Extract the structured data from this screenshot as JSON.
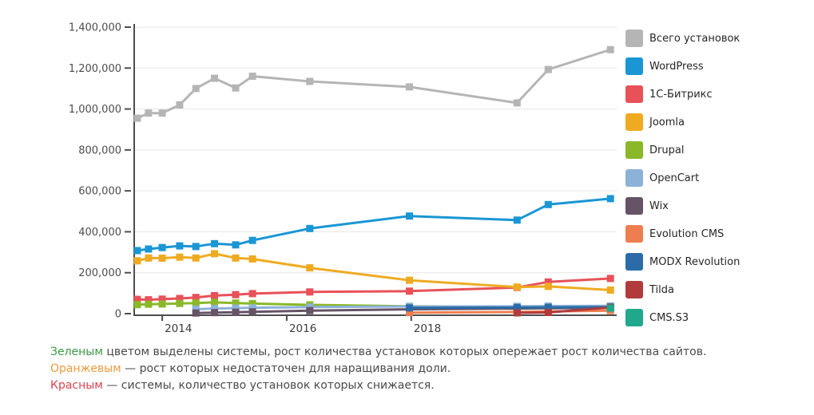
{
  "chart_data": {
    "type": "line",
    "title": "",
    "xlabel": "",
    "ylabel": "",
    "grid": true,
    "legend_position": "right",
    "xlim": [
      2013.55,
      2021.3
    ],
    "ylim": [
      0,
      1400000
    ],
    "x": [
      2013.6,
      2013.78,
      2014.0,
      2014.28,
      2014.54,
      2014.84,
      2015.18,
      2015.45,
      2016.37,
      2017.97,
      2019.7,
      2020.2,
      2021.2
    ],
    "x_ticks": [
      {
        "year": 2014,
        "label": "2014"
      },
      {
        "year": 2016,
        "label": "2016"
      },
      {
        "year": 2018,
        "label": "2018"
      }
    ],
    "y_ticks": [
      0,
      200000,
      400000,
      600000,
      800000,
      1000000,
      1200000,
      1400000
    ],
    "y_tick_labels": [
      "0",
      "200,000",
      "400,000",
      "600,000",
      "800,000",
      "1,000,000",
      "1,200,000",
      "1,400,000"
    ],
    "series": [
      {
        "id": "total",
        "name": "Всего установок",
        "color": "#b5b5b5",
        "values": [
          955000,
          980000,
          980000,
          1020000,
          1100000,
          1150000,
          1103000,
          1160000,
          1135000,
          1108000,
          1030000,
          1193000,
          1290000
        ]
      },
      {
        "id": "wordpress",
        "name": "WordPress",
        "color": "#1a96d5",
        "values": [
          308000,
          316000,
          323000,
          331000,
          328000,
          342000,
          336000,
          358000,
          416000,
          477000,
          457000,
          533000,
          562000
        ]
      },
      {
        "id": "bitrix",
        "name": "1С-Битрикс",
        "color": "#e85158",
        "values": [
          70000,
          68000,
          71000,
          74000,
          79000,
          88000,
          93000,
          98000,
          106000,
          110000,
          128000,
          155000,
          172000
        ]
      },
      {
        "id": "joomla",
        "name": "Joomla",
        "color": "#eeab22",
        "values": [
          258000,
          272000,
          271000,
          276000,
          272000,
          293000,
          272000,
          267000,
          224000,
          163000,
          130000,
          133000,
          115000
        ]
      },
      {
        "id": "drupal",
        "name": "Drupal",
        "color": "#8ab829",
        "values": [
          44000,
          46000,
          47000,
          50000,
          52000,
          55000,
          52000,
          49000,
          43000,
          36000,
          33000,
          32000,
          31000
        ]
      },
      {
        "id": "opencart",
        "name": "OpenCart",
        "color": "#8db2d8",
        "values": [
          null,
          null,
          null,
          null,
          22000,
          25000,
          27000,
          29000,
          32000,
          35000,
          36000,
          37000,
          38000
        ]
      },
      {
        "id": "wix",
        "name": "Wix",
        "color": "#665366",
        "values": [
          null,
          null,
          null,
          null,
          3000,
          5000,
          7000,
          9000,
          15000,
          21000,
          25000,
          26000,
          28000
        ]
      },
      {
        "id": "evolution-cms",
        "name": "Evolution CMS",
        "color": "#ee7e4f",
        "values": [
          null,
          null,
          null,
          null,
          null,
          null,
          null,
          null,
          null,
          5000,
          8000,
          11000,
          15000
        ]
      },
      {
        "id": "modx-revolution",
        "name": "MODX Revolution",
        "color": "#2b6ca8",
        "values": [
          null,
          null,
          null,
          null,
          null,
          null,
          null,
          null,
          null,
          28000,
          30000,
          31000,
          32000
        ]
      },
      {
        "id": "tilda",
        "name": "Tilda",
        "color": "#b03a3c",
        "values": [
          null,
          null,
          null,
          null,
          null,
          null,
          null,
          null,
          null,
          null,
          4000,
          6000,
          30000
        ]
      },
      {
        "id": "cms-s3",
        "name": "CMS.S3",
        "color": "#1fa88c",
        "values": [
          null,
          null,
          null,
          null,
          null,
          null,
          null,
          null,
          null,
          null,
          null,
          null,
          27000
        ]
      }
    ]
  },
  "footnotes": [
    {
      "term": "Зеленым",
      "term_color": "#3d9a47",
      "rest": " цветом выделены системы, рост количества установок которых опережает рост количества сайтов."
    },
    {
      "term": "Оранжевым",
      "term_color": "#ee9a3e",
      "rest": " — рост которых недостаточен для наращивания доли."
    },
    {
      "term": "Красным",
      "term_color": "#d9434e",
      "rest": " — системы, количество установок которых снижается."
    }
  ]
}
